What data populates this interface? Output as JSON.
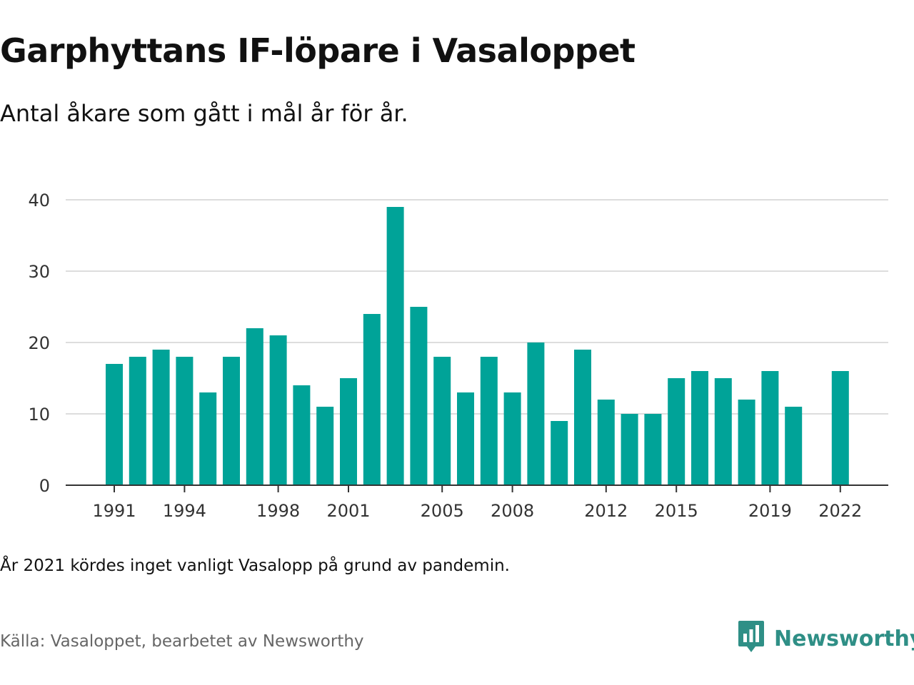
{
  "header": {
    "title": "Garphyttans IF-löpare i Vasaloppet",
    "subtitle": "Antal åkare som gått i mål år för år."
  },
  "footer": {
    "note": "År 2021 kördes inget vanligt Vasalopp på grund av pandemin.",
    "source": "Källa: Vasaloppet, bearbetet av Newsworthy",
    "brand": "Newsworthy"
  },
  "colors": {
    "bar": "#00a398",
    "grid": "#dddddd",
    "axis": "#333333",
    "brand": "#2f8f86"
  },
  "icons": {
    "brand_logo": "bar-chart-speech-bubble-icon"
  },
  "chart_data": {
    "type": "bar",
    "title": "Garphyttans IF-löpare i Vasaloppet",
    "subtitle": "Antal åkare som gått i mål år för år.",
    "xlabel": "",
    "ylabel": "",
    "categories": [
      1991,
      1992,
      1993,
      1994,
      1995,
      1996,
      1997,
      1998,
      1999,
      2000,
      2001,
      2002,
      2003,
      2004,
      2005,
      2006,
      2007,
      2008,
      2009,
      2010,
      2011,
      2012,
      2013,
      2014,
      2015,
      2016,
      2017,
      2018,
      2019,
      2020,
      2021,
      2022
    ],
    "values": [
      17,
      18,
      19,
      18,
      13,
      18,
      22,
      21,
      14,
      11,
      15,
      24,
      39,
      25,
      18,
      13,
      18,
      13,
      20,
      9,
      19,
      12,
      10,
      10,
      15,
      16,
      15,
      12,
      16,
      11,
      null,
      16
    ],
    "ylim": [
      0,
      40
    ],
    "yticks": [
      0,
      10,
      20,
      30,
      40
    ],
    "xtick_labels": [
      "1991",
      "1994",
      "1998",
      "2001",
      "2005",
      "2008",
      "2012",
      "2015",
      "2019",
      "2022"
    ],
    "grid": true,
    "legend": "none"
  }
}
